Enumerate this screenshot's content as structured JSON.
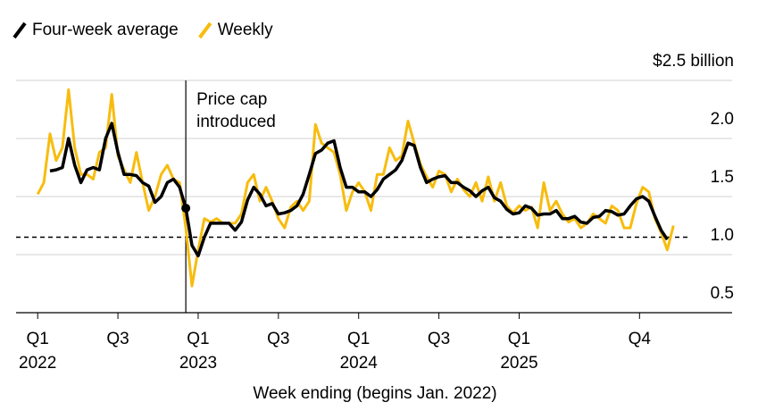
{
  "chart_data": {
    "type": "line",
    "x_label": "Week ending (begins Jan. 2022)",
    "x": [
      0,
      2,
      4,
      6,
      8,
      10,
      12,
      14,
      16,
      18,
      20,
      22,
      24,
      26,
      28,
      30,
      32,
      34,
      36,
      38,
      40,
      42,
      44,
      46,
      48,
      50,
      52,
      54,
      56,
      58,
      60,
      62,
      64,
      66,
      68,
      70,
      72,
      74,
      76,
      78,
      80,
      82,
      84,
      86,
      88,
      90,
      92,
      94,
      96,
      98,
      100,
      102,
      104,
      106,
      108,
      110,
      112,
      114,
      116,
      118,
      120,
      122,
      124,
      126,
      128,
      130,
      132,
      134,
      136,
      138,
      140,
      142,
      144,
      146,
      148,
      150,
      152,
      154,
      156,
      158,
      160,
      162,
      164,
      166,
      168,
      170,
      172,
      174,
      176,
      178,
      180,
      182,
      184,
      186,
      188,
      190,
      192,
      194,
      196,
      198,
      200,
      202,
      204,
      206
    ],
    "series": [
      {
        "name": "Four-week average",
        "color": "#000000",
        "width": 3.5,
        "values": [
          null,
          null,
          1.72,
          1.73,
          1.75,
          2.0,
          1.77,
          1.62,
          1.73,
          1.75,
          1.73,
          2.0,
          2.13,
          1.88,
          1.69,
          1.69,
          1.68,
          1.62,
          1.59,
          1.45,
          1.5,
          1.62,
          1.65,
          1.58,
          1.4,
          1.08,
          0.99,
          1.15,
          1.27,
          1.27,
          1.27,
          1.27,
          1.21,
          1.28,
          1.47,
          1.58,
          1.52,
          1.42,
          1.44,
          1.35,
          1.36,
          1.38,
          1.42,
          1.52,
          1.69,
          1.87,
          1.9,
          1.96,
          1.98,
          1.75,
          1.58,
          1.58,
          1.54,
          1.54,
          1.5,
          1.56,
          1.65,
          1.69,
          1.73,
          1.81,
          1.96,
          1.94,
          1.75,
          1.62,
          1.65,
          1.67,
          1.68,
          1.62,
          1.62,
          1.58,
          1.55,
          1.5,
          1.55,
          1.58,
          1.49,
          1.46,
          1.39,
          1.35,
          1.36,
          1.42,
          1.4,
          1.34,
          1.35,
          1.35,
          1.38,
          1.31,
          1.31,
          1.33,
          1.28,
          1.27,
          1.32,
          1.33,
          1.38,
          1.37,
          1.34,
          1.35,
          1.42,
          1.48,
          1.5,
          1.46,
          1.33,
          1.21,
          1.13,
          null
        ]
      },
      {
        "name": "Weekly",
        "color": "#f7bc0e",
        "width": 3,
        "values": [
          1.52,
          1.62,
          2.04,
          1.81,
          1.92,
          2.42,
          1.92,
          1.69,
          1.69,
          1.65,
          1.88,
          1.92,
          2.38,
          1.85,
          1.73,
          1.62,
          1.88,
          1.62,
          1.38,
          1.5,
          1.69,
          1.77,
          1.65,
          1.62,
          1.23,
          0.73,
          1.04,
          1.31,
          1.28,
          1.31,
          1.27,
          1.27,
          1.27,
          1.35,
          1.62,
          1.69,
          1.46,
          1.58,
          1.46,
          1.31,
          1.23,
          1.41,
          1.46,
          1.38,
          1.46,
          2.12,
          1.96,
          1.92,
          1.88,
          1.69,
          1.38,
          1.54,
          1.62,
          1.54,
          1.38,
          1.69,
          1.69,
          1.92,
          1.81,
          1.85,
          2.15,
          1.96,
          1.78,
          1.67,
          1.58,
          1.72,
          1.69,
          1.54,
          1.65,
          1.56,
          1.5,
          1.62,
          1.46,
          1.67,
          1.46,
          1.62,
          1.42,
          1.36,
          1.42,
          1.38,
          1.41,
          1.23,
          1.62,
          1.38,
          1.46,
          1.35,
          1.28,
          1.31,
          1.23,
          1.27,
          1.35,
          1.31,
          1.27,
          1.42,
          1.38,
          1.23,
          1.23,
          1.44,
          1.58,
          1.54,
          1.31,
          1.19,
          1.04,
          1.25
        ]
      }
    ],
    "xlim": [
      -7,
      225
    ],
    "xticks": [
      {
        "value": 0,
        "label": "Q1",
        "sublabel": "2022"
      },
      {
        "value": 26,
        "label": "Q3"
      },
      {
        "value": 52,
        "label": "Q1",
        "sublabel": "2023"
      },
      {
        "value": 78,
        "label": "Q3"
      },
      {
        "value": 104,
        "label": "Q1",
        "sublabel": "2024"
      },
      {
        "value": 130,
        "label": "Q3"
      },
      {
        "value": 156,
        "label": "Q1",
        "sublabel": "2025"
      },
      {
        "value": 195,
        "label": "Q4"
      }
    ],
    "ylim": [
      0.5,
      2.5
    ],
    "yticks": [
      0.5,
      {
        "value": 1,
        "label": "1.0"
      },
      1.5,
      {
        "value": 2,
        "label": "2.0"
      },
      {
        "value": 2.5,
        "label": "$2.5 billion"
      }
    ],
    "grid": true,
    "reference_line": 1.15,
    "event": {
      "x": 48,
      "lines": [
        "Price cap",
        "introduced"
      ]
    },
    "legend": "top-left"
  }
}
